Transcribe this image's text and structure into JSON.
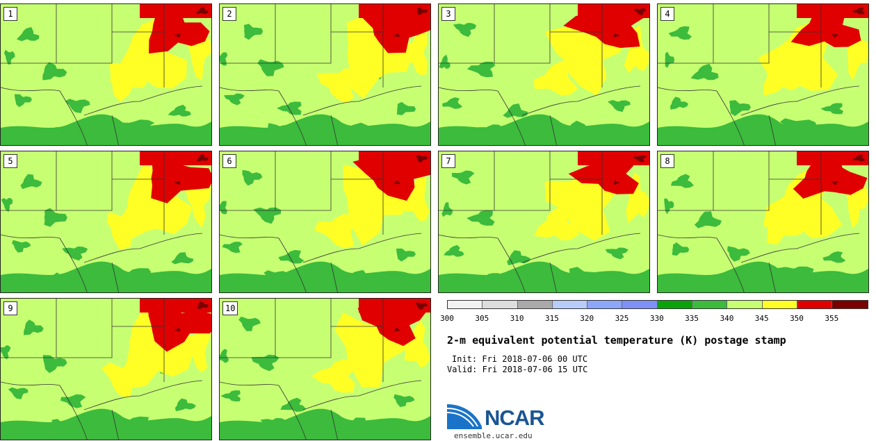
{
  "panels": [
    {
      "label": "1"
    },
    {
      "label": "2"
    },
    {
      "label": "3"
    },
    {
      "label": "4"
    },
    {
      "label": "5"
    },
    {
      "label": "6"
    },
    {
      "label": "7"
    },
    {
      "label": "8"
    },
    {
      "label": "9"
    },
    {
      "label": "10"
    }
  ],
  "colorbar": {
    "colors": [
      "#f2f2f2",
      "#dddddd",
      "#aaaaaa",
      "#b8ccfa",
      "#8ca6f9",
      "#7d91f7",
      "#0aa30a",
      "#3cbb3c",
      "#c7ff73",
      "#ffff26",
      "#e00000",
      "#7a0000"
    ],
    "ticks": [
      "300",
      "305",
      "310",
      "315",
      "320",
      "325",
      "330",
      "335",
      "340",
      "345",
      "350",
      "355"
    ]
  },
  "title": "2-m equivalent potential temperature (K) postage stamp",
  "init": "Init: Fri 2018-07-06 00 UTC",
  "valid": "Valid: Fri 2018-07-06 15 UTC",
  "logo": {
    "text": "NCAR",
    "url": "ensemble.ucar.edu"
  }
}
